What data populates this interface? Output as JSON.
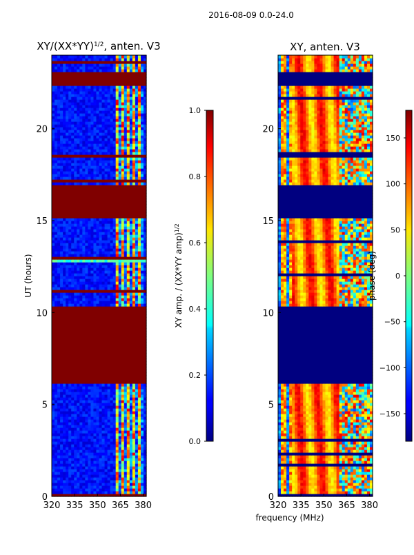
{
  "suptitle": "2016-08-09 0.0-24.0",
  "shared_xlabel": "frequency (MHz)",
  "chart_data": [
    {
      "type": "heatmap",
      "title": "XY/(XX*YY)",
      "title_sup": "1/2",
      "title_suffix": ", anten. V3",
      "xlabel": "",
      "ylabel": "UT (hours)",
      "xlim": [
        320,
        382
      ],
      "ylim": [
        0,
        24
      ],
      "xticks": [
        320,
        335,
        350,
        365,
        380
      ],
      "yticks": [
        0,
        5,
        10,
        15,
        20
      ],
      "colorbar": {
        "label": "XY amp. / (XX*YY amp)",
        "label_sup": "1/2",
        "range": [
          0.0,
          1.0
        ],
        "ticks": [
          "0.0",
          "0.2",
          "0.4",
          "0.6",
          "0.8",
          "1.0"
        ],
        "colormap": "jet"
      },
      "flagged_ut_ranges": [
        [
          6.2,
          10.4
        ],
        [
          15.1,
          16.9
        ],
        [
          22.4,
          23.1
        ],
        [
          0.0,
          0.2
        ]
      ],
      "saturated_band_ut": [
        12.8,
        13.0
      ],
      "high_value_freq_band_mhz": [
        362,
        381
      ]
    },
    {
      "type": "heatmap",
      "title": "XY, anten. V3",
      "xlabel": "",
      "ylabel": "",
      "xlim": [
        320,
        382
      ],
      "ylim": [
        0,
        24
      ],
      "xticks": [
        320,
        335,
        350,
        365,
        380
      ],
      "yticks": [
        0,
        5,
        10,
        15,
        20
      ],
      "colorbar": {
        "label": "phase (deg)",
        "range": [
          -180,
          180
        ],
        "ticks": [
          "150",
          "100",
          "50",
          "0",
          "−50",
          "−100",
          "−150"
        ],
        "colormap": "jet"
      },
      "flagged_ut_ranges": [
        [
          6.2,
          10.4
        ],
        [
          15.1,
          16.9
        ],
        [
          22.4,
          23.1
        ],
        [
          0.0,
          0.2
        ]
      ]
    }
  ]
}
